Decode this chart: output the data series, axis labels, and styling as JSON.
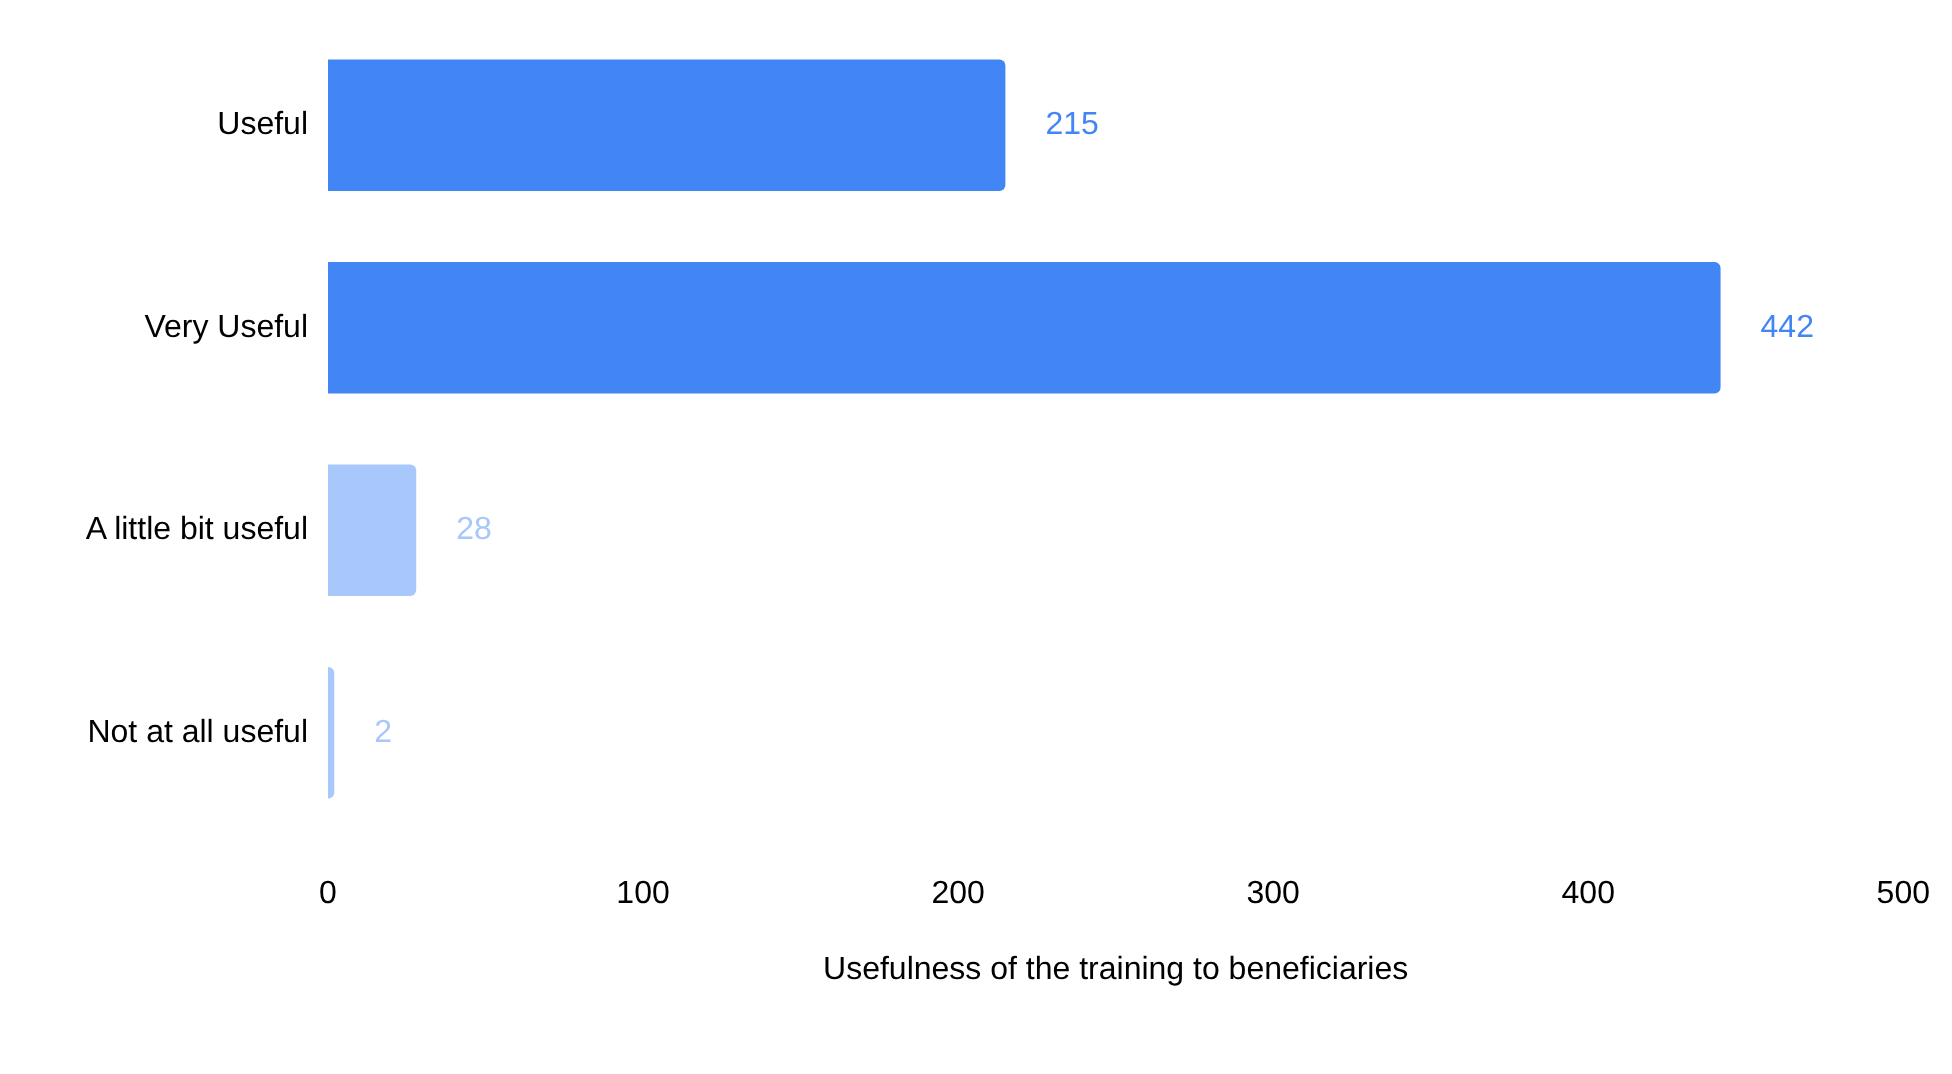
{
  "chart_data": {
    "type": "bar",
    "orientation": "horizontal",
    "xlabel": "Usefulness of the training to beneficiaries",
    "categories": [
      "Useful",
      "Very Useful",
      "A little bit useful",
      "Not at all useful"
    ],
    "values": [
      215,
      442,
      28,
      2
    ],
    "colors": [
      "#4285f4",
      "#4285f4",
      "#a8c7fa",
      "#a8c7fa"
    ],
    "xlim": [
      0,
      500
    ],
    "xticks": [
      0,
      100,
      200,
      300,
      400,
      500
    ],
    "data_labels": true,
    "grid": false
  }
}
